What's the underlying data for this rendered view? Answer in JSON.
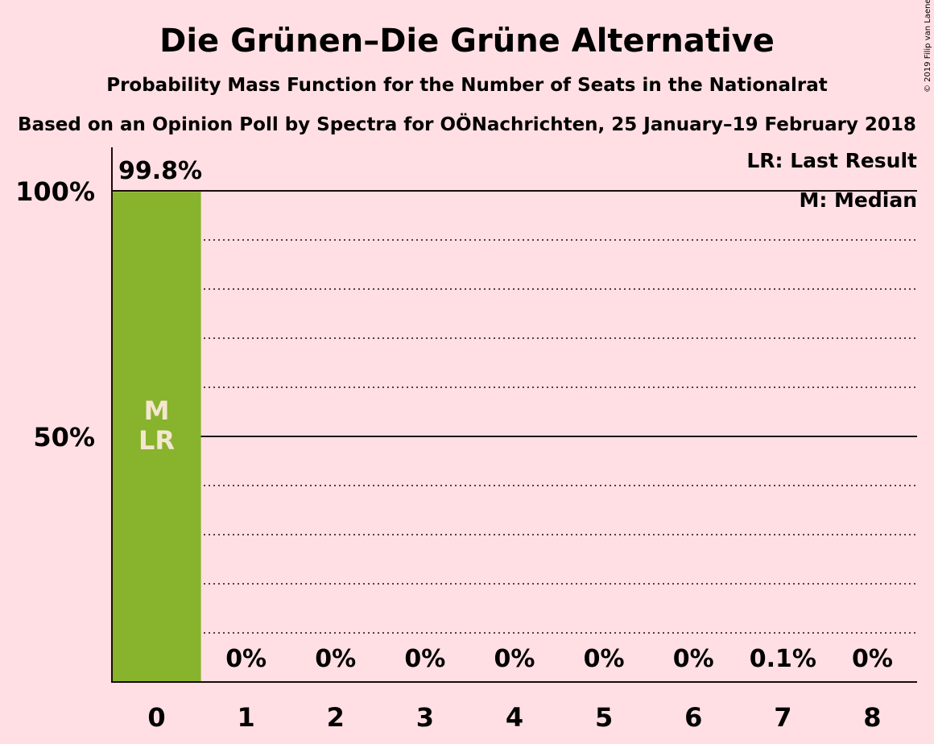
{
  "title": "Die Grünen–Die Grüne Alternative",
  "subtitle": "Probability Mass Function for the Number of Seats in the Nationalrat",
  "subtitle2": "Based on an Opinion Poll by Spectra for OÖNachrichten, 25 January–19 February 2018",
  "copyright": "© 2019 Filip van Laenen",
  "legend": {
    "lr": "LR: Last Result",
    "m": "M: Median"
  },
  "colors": {
    "bar": "#88b32d",
    "background": "#ffdfe3",
    "text": "#1a0a0a",
    "marker": "#f5e6d0"
  },
  "chart_data": {
    "type": "bar",
    "categories": [
      "0",
      "1",
      "2",
      "3",
      "4",
      "5",
      "6",
      "7",
      "8"
    ],
    "values": [
      99.8,
      0,
      0,
      0,
      0,
      0,
      0,
      0.1,
      0
    ],
    "data_labels": [
      "99.8%",
      "0%",
      "0%",
      "0%",
      "0%",
      "0%",
      "0%",
      "0.1%",
      "0%"
    ],
    "ylim": [
      0,
      110
    ],
    "yticks": [
      50,
      100
    ],
    "ytick_labels": [
      "50%",
      "100%"
    ],
    "grid": "dotted every 10%",
    "median": "0",
    "last_result": "0",
    "marker_labels": {
      "median": "M",
      "last_result": "LR"
    },
    "legend_position": "top-right",
    "xlabel": "",
    "ylabel": ""
  }
}
